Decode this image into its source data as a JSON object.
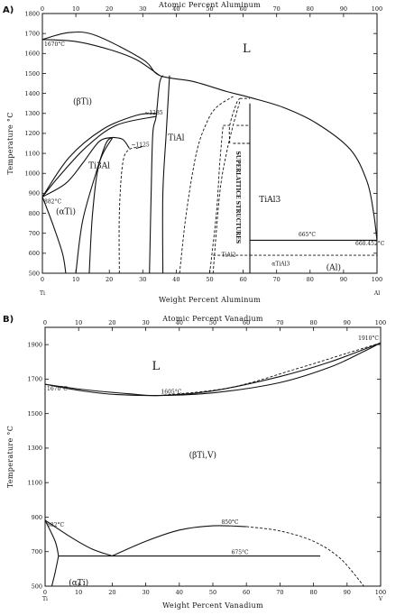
{
  "chart_data": [
    {
      "type": "line",
      "panel_label": "A)",
      "top_axis_label": "Atomic Percent Aluminum",
      "xlabel": "Weight Percent Aluminum",
      "ylabel": "Temperature °C",
      "xlim": [
        0,
        100
      ],
      "ylim": [
        500,
        1800
      ],
      "x_ticks": [
        "0",
        "10",
        "20",
        "30",
        "40",
        "50",
        "60",
        "70",
        "80",
        "90",
        "100"
      ],
      "top_ticks": [
        "0",
        "10",
        "20",
        "30",
        "40",
        "50",
        "60",
        "70",
        "80",
        "90",
        "100"
      ],
      "y_ticks": [
        "500",
        "600",
        "700",
        "800",
        "900",
        "1000",
        "1100",
        "1200",
        "1300",
        "1400",
        "1500",
        "1600",
        "1700",
        "1800"
      ],
      "x_end_labels": {
        "left": "Ti",
        "right": "Al"
      },
      "annotations": [
        {
          "text": "1670°C",
          "x": 0,
          "y": 1670
        },
        {
          "text": "882°C",
          "x": 0,
          "y": 882
        },
        {
          "text": "L",
          "x": 61,
          "y": 1620
        },
        {
          "text": "(βTi)",
          "x": 12,
          "y": 1360
        },
        {
          "text": "(αTi)",
          "x": 7,
          "y": 810
        },
        {
          "text": "Ti3Al",
          "x": 17,
          "y": 1040
        },
        {
          "text": "TiAl",
          "x": 40,
          "y": 1180
        },
        {
          "text": "TiAl3",
          "x": 68,
          "y": 870
        },
        {
          "text": "SUPERLATTICE STRUCTURES",
          "x": 58,
          "y": 880
        },
        {
          "text": "665°C",
          "x": 76,
          "y": 675
        },
        {
          "text": "660.452°C",
          "x": 100,
          "y": 650
        },
        {
          "text": "TiAl2",
          "x": 53,
          "y": 575
        },
        {
          "text": "αTiAl3",
          "x": 68,
          "y": 530
        },
        {
          "text": "(Al)",
          "x": 87,
          "y": 530
        },
        {
          "text": "~1285",
          "x": 30,
          "y": 1285
        },
        {
          "text": "~1125",
          "x": 26,
          "y": 1125
        }
      ],
      "series": [
        {
          "values": [
            [
              0,
              1670
            ],
            [
              8,
              1705
            ],
            [
              16,
              1690
            ],
            [
              30,
              1570
            ],
            [
              35,
              1490
            ],
            [
              45,
              1460
            ],
            [
              55,
              1410
            ],
            [
              62,
              1380
            ],
            [
              72,
              1330
            ],
            [
              82,
              1250
            ],
            [
              92,
              1120
            ],
            [
              97,
              960
            ],
            [
              99,
              800
            ],
            [
              100,
              660.452
            ]
          ]
        },
        {
          "values": [
            [
              0,
              1670
            ],
            [
              10,
              1660
            ],
            [
              20,
              1620
            ],
            [
              28,
              1570
            ],
            [
              35,
              1490
            ]
          ]
        },
        {
          "values": [
            [
              0,
              882
            ],
            [
              8,
              1080
            ],
            [
              18,
              1220
            ],
            [
              28,
              1290
            ],
            [
              34,
              1300
            ]
          ]
        },
        {
          "values": [
            [
              0,
              882
            ],
            [
              5,
              985
            ],
            [
              13,
              1130
            ],
            [
              22,
              1240
            ],
            [
              34,
              1285
            ]
          ]
        },
        {
          "values": [
            [
              0,
              882
            ],
            [
              3,
              750
            ],
            [
              6,
              600
            ],
            [
              7,
              500
            ]
          ]
        },
        {
          "values": [
            [
              0,
              882
            ],
            [
              7,
              950
            ],
            [
              12,
              1050
            ],
            [
              17,
              1160
            ],
            [
              21,
              1180
            ]
          ]
        },
        {
          "values": [
            [
              10,
              500
            ],
            [
              12,
              760
            ],
            [
              16,
              1000
            ],
            [
              19,
              1150
            ],
            [
              21,
              1180
            ]
          ]
        },
        {
          "values": [
            [
              14,
              500
            ],
            [
              15,
              800
            ],
            [
              17,
              1050
            ],
            [
              21,
              1180
            ]
          ]
        },
        {
          "values": [
            [
              21,
              1180
            ],
            [
              24,
              1170
            ],
            [
              26,
              1125
            ]
          ]
        },
        {
          "values": [
            [
              32,
              500
            ],
            [
              32.5,
              900
            ],
            [
              33,
              1200
            ],
            [
              34,
              1285
            ],
            [
              35,
              1450
            ],
            [
              36,
              1490
            ]
          ]
        },
        {
          "values": [
            [
              36,
              500
            ],
            [
              36,
              900
            ],
            [
              37,
              1200
            ],
            [
              38,
              1490
            ]
          ]
        },
        {
          "values": [
            [
              62,
              500
            ],
            [
              62,
              1350
            ]
          ]
        },
        {
          "values": [
            [
              62,
              665
            ],
            [
              100,
              665
            ]
          ]
        }
      ],
      "dashed_series": [
        {
          "values": [
            [
              23,
              500
            ],
            [
              23,
              800
            ],
            [
              24,
              1050
            ],
            [
              26,
              1120
            ],
            [
              30,
              1130
            ]
          ]
        },
        {
          "values": [
            [
              41,
              500
            ],
            [
              43,
              800
            ],
            [
              46,
              1100
            ],
            [
              49,
              1250
            ],
            [
              52,
              1330
            ],
            [
              57,
              1385
            ]
          ]
        },
        {
          "values": [
            [
              50,
              500
            ],
            [
              52,
              800
            ],
            [
              53,
              1050
            ],
            [
              54,
              1240
            ]
          ]
        },
        {
          "values": [
            [
              51,
              500
            ],
            [
              53,
              900
            ],
            [
              55,
              1100
            ],
            [
              57,
              1240
            ],
            [
              59,
              1360
            ]
          ]
        },
        {
          "values": [
            [
              54,
              1240
            ],
            [
              56,
              1240
            ]
          ]
        },
        {
          "values": [
            [
              56,
              1150
            ],
            [
              56,
              1240
            ],
            [
              58,
              1350
            ],
            [
              59,
              1375
            ]
          ]
        },
        {
          "values": [
            [
              58,
              1240
            ],
            [
              62,
              1240
            ]
          ]
        },
        {
          "values": [
            [
              59,
              1375
            ],
            [
              62,
              1375
            ]
          ]
        },
        {
          "values": [
            [
              57,
              1150
            ],
            [
              62,
              1150
            ]
          ]
        },
        {
          "values": [
            [
              51,
              590
            ],
            [
              62,
              590
            ]
          ]
        },
        {
          "values": [
            [
              62,
              590
            ],
            [
              100,
              590
            ]
          ]
        },
        {
          "values": [
            [
              28,
              1125
            ],
            [
              30,
              1135
            ]
          ]
        }
      ]
    },
    {
      "type": "line",
      "panel_label": "B)",
      "top_axis_label": "Atomic Percent Vanadium",
      "xlabel": "Weight Percent Vanadium",
      "ylabel": "Temperature °C",
      "xlim": [
        0,
        100
      ],
      "ylim": [
        500,
        2000
      ],
      "x_ticks": [
        "0",
        "10",
        "20",
        "30",
        "40",
        "50",
        "60",
        "70",
        "80",
        "90",
        "100"
      ],
      "top_ticks": [
        "0",
        "10",
        "20",
        "30",
        "40",
        "50",
        "60",
        "70",
        "80",
        "90",
        "100"
      ],
      "y_ticks": [
        "500",
        "700",
        "900",
        "1100",
        "1300",
        "1500",
        "1700",
        "1900"
      ],
      "x_end_labels": {
        "left": "Ti",
        "right": "V"
      },
      "annotations": [
        {
          "text": "1670°C",
          "x": 0,
          "y": 1670
        },
        {
          "text": "1605°C",
          "x": 34,
          "y": 1605
        },
        {
          "text": "1910°C",
          "x": 100,
          "y": 1910
        },
        {
          "text": "L",
          "x": 33,
          "y": 1770
        },
        {
          "text": "(βTi,V)",
          "x": 47,
          "y": 1260
        },
        {
          "text": "882°C",
          "x": 0,
          "y": 882
        },
        {
          "text": "850°C",
          "x": 52,
          "y": 850
        },
        {
          "text": "675°C",
          "x": 55,
          "y": 675
        },
        {
          "text": "(αTi)",
          "x": 10,
          "y": 520
        }
      ],
      "series": [
        {
          "values": [
            [
              0,
              1670
            ],
            [
              10,
              1635
            ],
            [
              20,
              1612
            ],
            [
              34,
              1605
            ],
            [
              50,
              1620
            ],
            [
              70,
              1680
            ],
            [
              85,
              1770
            ],
            [
              95,
              1860
            ],
            [
              100,
              1910
            ]
          ]
        },
        {
          "values": [
            [
              0,
              1670
            ],
            [
              12,
              1638
            ],
            [
              25,
              1615
            ],
            [
              34,
              1605
            ],
            [
              50,
              1632
            ],
            [
              70,
              1715
            ],
            [
              85,
              1800
            ],
            [
              100,
              1910
            ]
          ]
        },
        {
          "values": [
            [
              0,
              882
            ],
            [
              8,
              780
            ],
            [
              14,
              715
            ],
            [
              20,
              675
            ]
          ]
        },
        {
          "values": [
            [
              0,
              882
            ],
            [
              3,
              760
            ],
            [
              4,
              675
            ]
          ]
        },
        {
          "values": [
            [
              4,
              675
            ],
            [
              3,
              580
            ],
            [
              2,
              500
            ]
          ]
        },
        {
          "values": [
            [
              4,
              675
            ],
            [
              20,
              675
            ],
            [
              82,
              675
            ]
          ]
        },
        {
          "values": [
            [
              20,
              675
            ],
            [
              30,
              760
            ],
            [
              40,
              825
            ],
            [
              50,
              850
            ],
            [
              60,
              845
            ]
          ]
        }
      ],
      "dashed_series": [
        {
          "values": [
            [
              60,
              845
            ],
            [
              70,
              820
            ],
            [
              80,
              760
            ],
            [
              88,
              660
            ],
            [
              95,
              500
            ]
          ]
        },
        {
          "values": [
            [
              34,
              1605
            ],
            [
              55,
              1650
            ],
            [
              75,
              1760
            ],
            [
              90,
              1850
            ],
            [
              100,
              1910
            ]
          ]
        }
      ]
    }
  ]
}
